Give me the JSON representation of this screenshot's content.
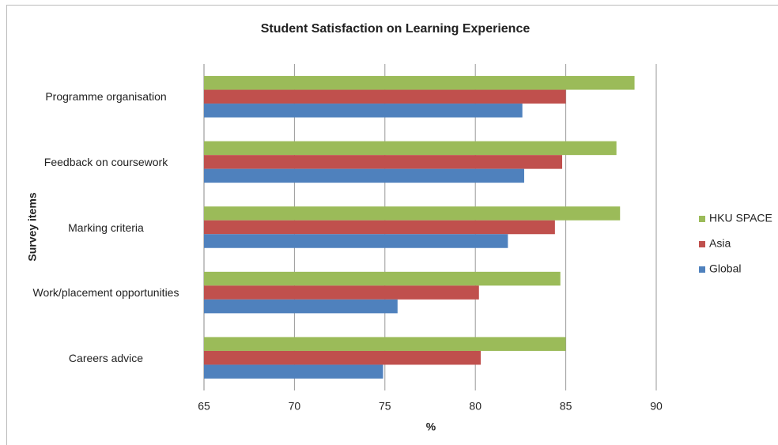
{
  "chart_data": {
    "type": "bar",
    "orientation": "horizontal",
    "title": "Student Satisfaction on Learning Experience",
    "x_label": "%",
    "y_label": "Survey items",
    "categories": [
      "Programme organisation",
      "Feedback on coursework",
      "Marking criteria",
      "Work/placement opportunities",
      "Careers advice"
    ],
    "series": [
      {
        "name": "HKU SPACE",
        "color": "#9bbb59",
        "values": [
          88.8,
          87.8,
          88,
          84.7,
          85
        ]
      },
      {
        "name": "Asia",
        "color": "#c0504d",
        "values": [
          85,
          84.8,
          84.4,
          80.2,
          80.3
        ]
      },
      {
        "name": "Global",
        "color": "#4f81bd",
        "values": [
          82.6,
          82.7,
          81.8,
          75.7,
          74.9
        ]
      }
    ],
    "xlim": [
      65,
      90
    ],
    "xticks": [
      65,
      70,
      75,
      80,
      85,
      90
    ],
    "grid": true,
    "legend": "right"
  }
}
